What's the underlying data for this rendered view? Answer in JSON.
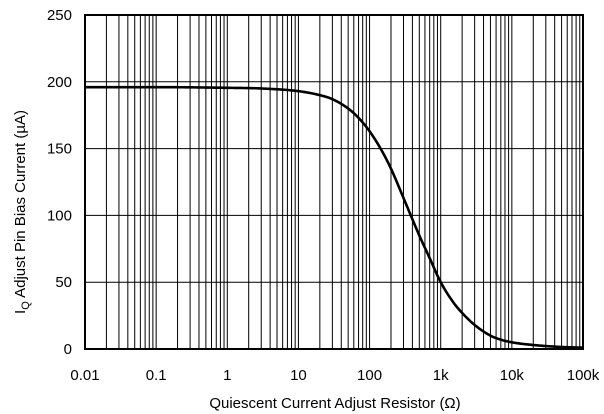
{
  "chart_data": {
    "type": "line",
    "title": "",
    "xlabel": "Quiescent Current Adjust Resistor (Ω)",
    "ylabel_main": "I",
    "ylabel_sub": "Q",
    "ylabel_rest": " Adjust Pin Bias Current (µA)",
    "x_scale": "log",
    "xlim": [
      0.01,
      100000
    ],
    "ylim": [
      0,
      250
    ],
    "grid": true,
    "legend": "none",
    "x_ticks": [
      {
        "value": 0.01,
        "label": "0.01"
      },
      {
        "value": 0.1,
        "label": "0.1"
      },
      {
        "value": 1,
        "label": "1"
      },
      {
        "value": 10,
        "label": "10"
      },
      {
        "value": 100,
        "label": "100"
      },
      {
        "value": 1000,
        "label": "1k"
      },
      {
        "value": 10000,
        "label": "10k"
      },
      {
        "value": 100000,
        "label": "100k"
      }
    ],
    "y_ticks": [
      {
        "value": 0,
        "label": "0"
      },
      {
        "value": 50,
        "label": "50"
      },
      {
        "value": 100,
        "label": "100"
      },
      {
        "value": 150,
        "label": "150"
      },
      {
        "value": 200,
        "label": "200"
      },
      {
        "value": 250,
        "label": "250"
      }
    ],
    "series": [
      {
        "x": [
          0.01,
          0.1,
          1,
          3,
          10,
          20,
          30,
          50,
          70,
          100,
          150,
          200,
          300,
          500,
          700,
          1000,
          1500,
          2000,
          3000,
          5000,
          7000,
          10000,
          20000,
          50000,
          100000
        ],
        "y": [
          196,
          196,
          195.5,
          195,
          193,
          190,
          187,
          180,
          173,
          163,
          148,
          135,
          113,
          85,
          68,
          50,
          35,
          27,
          18,
          10,
          7,
          5,
          3,
          1.5,
          1
        ],
        "color": "#000000"
      }
    ]
  }
}
